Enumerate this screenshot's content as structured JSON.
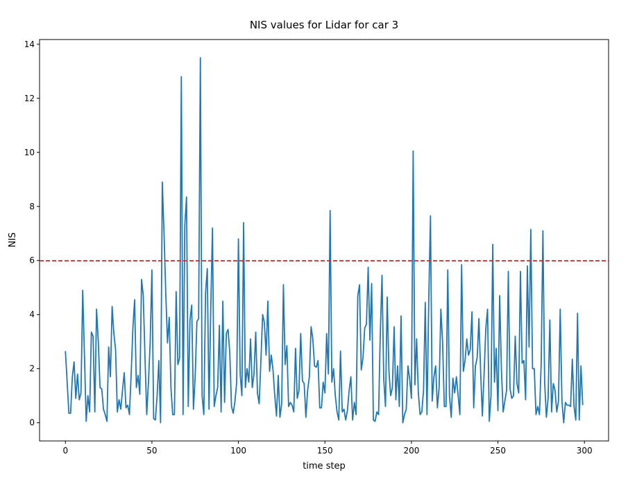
{
  "chart_data": {
    "type": "line",
    "title": "NIS values for Lidar for car 3",
    "xlabel": "time step",
    "ylabel": "NIS",
    "x": [
      0,
      1,
      2,
      3,
      4,
      5,
      6,
      7,
      8,
      9,
      10,
      11,
      12,
      13,
      14,
      15,
      16,
      17,
      18,
      19,
      20,
      21,
      22,
      23,
      24,
      25,
      26,
      27,
      28,
      29,
      30,
      31,
      32,
      33,
      34,
      35,
      36,
      37,
      38,
      39,
      40,
      41,
      42,
      43,
      44,
      45,
      46,
      47,
      48,
      49,
      50,
      51,
      52,
      53,
      54,
      55,
      56,
      57,
      58,
      59,
      60,
      61,
      62,
      63,
      64,
      65,
      66,
      67,
      68,
      69,
      70,
      71,
      72,
      73,
      74,
      75,
      76,
      77,
      78,
      79,
      80,
      81,
      82,
      83,
      84,
      85,
      86,
      87,
      88,
      89,
      90,
      91,
      92,
      93,
      94,
      95,
      96,
      97,
      98,
      99,
      100,
      101,
      102,
      103,
      104,
      105,
      106,
      107,
      108,
      109,
      110,
      111,
      112,
      113,
      114,
      115,
      116,
      117,
      118,
      119,
      120,
      121,
      122,
      123,
      124,
      125,
      126,
      127,
      128,
      129,
      130,
      131,
      132,
      133,
      134,
      135,
      136,
      137,
      138,
      139,
      140,
      141,
      142,
      143,
      144,
      145,
      146,
      147,
      148,
      149,
      150,
      151,
      152,
      153,
      154,
      155,
      156,
      157,
      158,
      159,
      160,
      161,
      162,
      163,
      164,
      165,
      166,
      167,
      168,
      169,
      170,
      171,
      172,
      173,
      174,
      175,
      176,
      177,
      178,
      179,
      180,
      181,
      182,
      183,
      184,
      185,
      186,
      187,
      188,
      189,
      190,
      191,
      192,
      193,
      194,
      195,
      196,
      197,
      198,
      199,
      200,
      201,
      202,
      203,
      204,
      205,
      206,
      207,
      208,
      209,
      210,
      211,
      212,
      213,
      214,
      215,
      216,
      217,
      218,
      219,
      220,
      221,
      222,
      223,
      224,
      225,
      226,
      227,
      228,
      229,
      230,
      231,
      232,
      233,
      234,
      235,
      236,
      237,
      238,
      239,
      240,
      241,
      242,
      243,
      244,
      245,
      246,
      247,
      248,
      249,
      250,
      251,
      252,
      253,
      254,
      255,
      256,
      257,
      258,
      259,
      260,
      261,
      262,
      263,
      264,
      265,
      266,
      267,
      268,
      269,
      270,
      271,
      272,
      273,
      274,
      275,
      276,
      277,
      278,
      279,
      280,
      281,
      282,
      283,
      284,
      285,
      286,
      287,
      288,
      289,
      290,
      291,
      292,
      293,
      294,
      295,
      296,
      297,
      298,
      299
    ],
    "series": [
      {
        "color": "#1f77b4",
        "values": [
          2.65,
          1.5,
          0.35,
          0.35,
          1.7,
          2.25,
          0.9,
          1.8,
          0.85,
          1.1,
          4.9,
          2.5,
          0.05,
          1.0,
          0.4,
          3.35,
          3.2,
          0.4,
          4.2,
          3.0,
          1.3,
          1.25,
          0.5,
          0.3,
          0.05,
          2.8,
          1.7,
          4.3,
          3.3,
          2.7,
          0.4,
          0.85,
          0.5,
          1.2,
          1.85,
          0.55,
          0.65,
          0.3,
          1.8,
          3.5,
          4.55,
          1.3,
          1.75,
          1.05,
          5.3,
          4.7,
          2.4,
          0.3,
          1.5,
          3.0,
          5.65,
          0.15,
          0.1,
          1.0,
          2.3,
          0.0,
          8.9,
          7.0,
          4.8,
          2.95,
          3.9,
          1.3,
          0.3,
          0.3,
          4.85,
          2.15,
          2.4,
          12.8,
          0.3,
          7.3,
          8.35,
          0.6,
          3.8,
          4.35,
          0.5,
          1.7,
          3.75,
          3.85,
          13.5,
          1.0,
          0.3,
          4.8,
          5.7,
          0.5,
          4.2,
          7.2,
          0.6,
          1.0,
          1.3,
          3.6,
          0.4,
          4.5,
          0.75,
          3.3,
          3.45,
          2.6,
          0.6,
          0.35,
          0.8,
          1.5,
          6.8,
          1.8,
          1.0,
          7.4,
          1.3,
          2.0,
          1.5,
          3.1,
          1.3,
          1.8,
          3.35,
          1.1,
          0.7,
          2.3,
          4.0,
          3.7,
          2.5,
          4.5,
          1.9,
          2.5,
          1.95,
          1.0,
          0.25,
          1.75,
          0.2,
          0.7,
          5.1,
          2.15,
          2.85,
          0.6,
          0.75,
          0.65,
          0.4,
          2.75,
          0.9,
          1.2,
          3.3,
          1.55,
          1.45,
          0.2,
          1.2,
          1.7,
          3.55,
          3.1,
          2.1,
          2.05,
          2.3,
          0.55,
          0.55,
          1.5,
          1.1,
          3.3,
          1.8,
          7.85,
          1.5,
          2.0,
          1.0,
          0.4,
          0.1,
          2.65,
          0.4,
          0.5,
          0.1,
          0.45,
          1.2,
          1.7,
          0.1,
          0.75,
          0.3,
          4.7,
          5.1,
          1.95,
          2.4,
          3.5,
          3.65,
          5.75,
          3.05,
          5.15,
          0.1,
          0.05,
          0.4,
          0.3,
          3.3,
          5.45,
          1.6,
          0.6,
          4.65,
          1.9,
          1.0,
          1.3,
          3.55,
          0.85,
          2.1,
          0.6,
          3.95,
          0.0,
          0.3,
          0.5,
          2.1,
          1.6,
          0.9,
          10.05,
          1.4,
          3.1,
          1.1,
          0.3,
          0.4,
          1.2,
          4.45,
          0.3,
          4.5,
          7.65,
          0.8,
          1.7,
          2.1,
          0.55,
          1.3,
          4.2,
          3.0,
          0.6,
          0.6,
          5.65,
          1.0,
          0.2,
          1.65,
          1.1,
          1.7,
          1.0,
          0.3,
          5.85,
          1.9,
          2.3,
          3.1,
          2.5,
          2.7,
          4.1,
          0.55,
          2.1,
          2.4,
          3.85,
          1.9,
          0.25,
          1.8,
          3.5,
          4.2,
          0.05,
          1.0,
          6.6,
          1.5,
          2.75,
          0.45,
          4.7,
          2.0,
          0.4,
          0.8,
          1.2,
          5.6,
          1.25,
          0.9,
          1.0,
          3.2,
          1.45,
          1.1,
          5.6,
          2.2,
          2.3,
          0.85,
          5.8,
          2.8,
          7.15,
          2.0,
          2.0,
          0.3,
          0.6,
          0.3,
          2.2,
          7.1,
          1.5,
          0.2,
          0.9,
          3.8,
          0.4,
          1.45,
          1.2,
          0.4,
          0.8,
          4.2,
          0.8,
          0.0,
          0.75,
          0.65,
          0.65,
          0.6,
          2.35,
          0.6,
          0.1,
          4.05,
          0.1,
          2.1,
          0.65
        ]
      }
    ],
    "threshold": 5.991,
    "threshold_color": "#d62728",
    "xlim": [
      -14.95,
      313.95
    ],
    "xticks": [
      0,
      50,
      100,
      150,
      200,
      250,
      300
    ],
    "ylim": [
      -0.675,
      14.175
    ],
    "yticks": [
      0,
      2,
      4,
      6,
      8,
      10,
      12,
      14
    ],
    "grid": false
  }
}
